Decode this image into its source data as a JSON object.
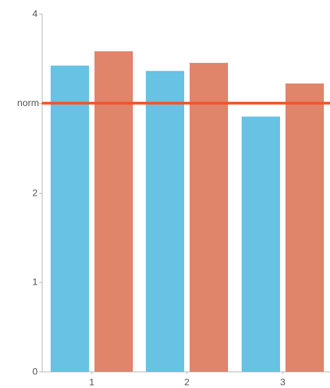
{
  "chart_data": {
    "type": "bar",
    "categories": [
      "1",
      "2",
      "3"
    ],
    "series": [
      {
        "values": [
          3.42,
          3.36,
          2.85
        ],
        "color": "#67c2e3"
      },
      {
        "values": [
          3.58,
          3.45,
          3.22
        ],
        "color": "#e0846a"
      }
    ],
    "reference_line": {
      "label": "norm",
      "value": 3.0,
      "color": "#f0552b"
    },
    "y_ticks": [
      {
        "value": 0,
        "label": "0"
      },
      {
        "value": 1,
        "label": "1"
      },
      {
        "value": 2,
        "label": "2"
      },
      {
        "value": 3,
        "label": ""
      },
      {
        "value": 4,
        "label": "4"
      }
    ],
    "ylim": [
      0,
      4
    ],
    "grid": false,
    "legend": "none",
    "title": "",
    "xlabel": "",
    "ylabel": ""
  }
}
